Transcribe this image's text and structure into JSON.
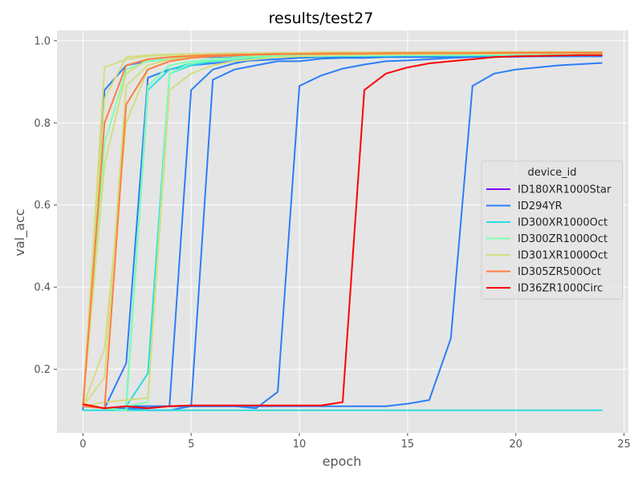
{
  "chart_data": {
    "type": "line",
    "title": "results/test27",
    "xlabel": "epoch",
    "ylabel": "val_acc",
    "xlim": [
      -1.2,
      25.2
    ],
    "ylim": [
      0.045,
      1.025
    ],
    "xticks": [
      0,
      5,
      10,
      15,
      20,
      25
    ],
    "yticks": [
      0.2,
      0.4,
      0.6,
      0.8,
      1.0
    ],
    "xtick_labels": [
      "0",
      "5",
      "10",
      "15",
      "20",
      "25"
    ],
    "ytick_labels": [
      "0.2",
      "0.4",
      "0.6",
      "0.8",
      "1.0"
    ],
    "grid": true,
    "legend": {
      "title": "device_id",
      "placement": "center-right",
      "entries": [
        {
          "label": "ID180XR1000Star",
          "color": "#8000ff"
        },
        {
          "label": "ID294YR",
          "color": "#2c7ef7"
        },
        {
          "label": "ID300XR1000Oct",
          "color": "#2adddd"
        },
        {
          "label": "ID300ZR1000Oct",
          "color": "#80ffb4"
        },
        {
          "label": "ID301XR1000Oct",
          "color": "#d4dd80"
        },
        {
          "label": "ID305ZR500Oct",
          "color": "#ff7e41"
        },
        {
          "label": "ID36ZR1000Circ",
          "color": "#ff0000"
        }
      ]
    },
    "series": [
      {
        "color": "#2c7ef7",
        "x": [
          0,
          1,
          2,
          3,
          4,
          5,
          6,
          7,
          8,
          9,
          10,
          11,
          12,
          13,
          14,
          15,
          16,
          17,
          18,
          19,
          20,
          21,
          22,
          23,
          24
        ],
        "y": [
          0.1,
          0.88,
          0.94,
          0.95,
          0.955,
          0.96,
          0.96,
          0.962,
          0.962,
          0.963,
          0.963,
          0.963,
          0.964,
          0.964,
          0.964,
          0.964,
          0.964,
          0.964,
          0.964,
          0.964,
          0.964,
          0.965,
          0.965,
          0.965,
          0.965
        ]
      },
      {
        "color": "#2c7ef7",
        "x": [
          0,
          1,
          2,
          3,
          4,
          5,
          6,
          7,
          8,
          9,
          10,
          11,
          12,
          13,
          14,
          15,
          16,
          17,
          18,
          19,
          20,
          21,
          22,
          23,
          24
        ],
        "y": [
          0.11,
          0.105,
          0.215,
          0.91,
          0.93,
          0.94,
          0.945,
          0.95,
          0.952,
          0.955,
          0.958,
          0.96,
          0.96,
          0.962,
          0.962,
          0.962,
          0.963,
          0.963,
          0.963,
          0.963,
          0.964,
          0.964,
          0.964,
          0.964,
          0.964
        ]
      },
      {
        "color": "#2c7ef7",
        "x": [
          0,
          1,
          2,
          3,
          4,
          5,
          6,
          7,
          8,
          9,
          10,
          11,
          12,
          13,
          14,
          15,
          16,
          17,
          18,
          19,
          20,
          21,
          22,
          23,
          24
        ],
        "y": [
          0.11,
          0.105,
          0.105,
          0.1,
          0.1,
          0.11,
          0.905,
          0.93,
          0.94,
          0.95,
          0.95,
          0.956,
          0.958,
          0.958,
          0.96,
          0.96,
          0.96,
          0.961,
          0.961,
          0.961,
          0.961,
          0.962,
          0.962,
          0.962,
          0.962
        ]
      },
      {
        "color": "#2c7ef7",
        "x": [
          0,
          1,
          2,
          3,
          4,
          5,
          6,
          7,
          8,
          9,
          10,
          11,
          12,
          13,
          14,
          15,
          16,
          17,
          18,
          19,
          20,
          21,
          22,
          23,
          24
        ],
        "y": [
          0.11,
          0.105,
          0.11,
          0.11,
          0.11,
          0.11,
          0.11,
          0.11,
          0.105,
          0.145,
          0.89,
          0.915,
          0.932,
          0.942,
          0.95,
          0.952,
          0.955,
          0.958,
          0.96,
          0.961,
          0.961,
          0.962,
          0.962,
          0.962,
          0.962
        ]
      },
      {
        "color": "#2c7ef7",
        "x": [
          0,
          1,
          2,
          3,
          4,
          5,
          6,
          7,
          8,
          9,
          10,
          11,
          12,
          13,
          14,
          15,
          16,
          17,
          18,
          19,
          20,
          21,
          22,
          23,
          24
        ],
        "y": [
          0.11,
          0.105,
          0.11,
          0.11,
          0.11,
          0.11,
          0.11,
          0.11,
          0.11,
          0.11,
          0.11,
          0.11,
          0.11,
          0.11,
          0.11,
          0.116,
          0.125,
          0.275,
          0.89,
          0.92,
          0.93,
          0.935,
          0.94,
          0.943,
          0.946
        ]
      },
      {
        "color": "#2c7ef7",
        "x": [
          0,
          1,
          2,
          3,
          4,
          5,
          6,
          7,
          8,
          9,
          10,
          11,
          12,
          13,
          14,
          15,
          16,
          17,
          18,
          19,
          20,
          21,
          22,
          23,
          24
        ],
        "y": [
          0.11,
          0.105,
          0.105,
          0.105,
          0.11,
          0.88,
          0.93,
          0.945,
          0.955,
          0.96,
          0.962,
          0.962,
          0.962,
          0.962,
          0.963,
          0.963,
          0.963,
          0.963,
          0.963,
          0.964,
          0.964,
          0.964,
          0.964,
          0.964,
          0.964
        ]
      },
      {
        "color": "#2adddd",
        "x": [
          0,
          1,
          2,
          3,
          4,
          5,
          6,
          7,
          8,
          9,
          10,
          11,
          12,
          13,
          14,
          15,
          16,
          17,
          18,
          19,
          20,
          21,
          22,
          23,
          24
        ],
        "y": [
          0.1,
          0.1,
          0.1,
          0.1,
          0.1,
          0.1,
          0.1,
          0.1,
          0.1,
          0.1,
          0.1,
          0.1,
          0.1,
          0.1,
          0.1,
          0.1,
          0.1,
          0.1,
          0.1,
          0.1,
          0.1,
          0.1,
          0.1,
          0.1,
          0.1
        ]
      },
      {
        "color": "#2adddd",
        "x": [
          0,
          1,
          2,
          3,
          4,
          5,
          6,
          7,
          8,
          9,
          10,
          11,
          12,
          13,
          14,
          15,
          16,
          17,
          18,
          19,
          20,
          21,
          22,
          23,
          24
        ],
        "y": [
          0.11,
          0.105,
          0.11,
          0.19,
          0.92,
          0.94,
          0.95,
          0.955,
          0.958,
          0.96,
          0.962,
          0.962,
          0.963,
          0.963,
          0.963,
          0.964,
          0.964,
          0.964,
          0.964,
          0.964,
          0.965,
          0.965,
          0.965,
          0.965,
          0.965
        ]
      },
      {
        "color": "#2adddd",
        "x": [
          0,
          1,
          2,
          3,
          4,
          5,
          6,
          7,
          8,
          9,
          10,
          11,
          12,
          13,
          14,
          15,
          16,
          17,
          18,
          19,
          20,
          21,
          22,
          23,
          24
        ],
        "y": [
          0.11,
          0.105,
          0.11,
          0.88,
          0.93,
          0.945,
          0.952,
          0.956,
          0.958,
          0.96,
          0.962,
          0.962,
          0.963,
          0.963,
          0.963,
          0.964,
          0.964,
          0.964,
          0.964,
          0.964,
          0.964,
          0.965,
          0.965,
          0.965,
          0.965
        ]
      },
      {
        "color": "#80ffb4",
        "x": [
          0,
          1,
          2,
          3,
          4,
          5,
          6,
          7,
          8,
          9,
          10,
          11,
          12,
          13,
          14,
          15,
          16,
          17,
          18,
          19,
          20,
          21,
          22,
          23,
          24
        ],
        "y": [
          0.11,
          0.75,
          0.93,
          0.95,
          0.955,
          0.96,
          0.962,
          0.963,
          0.963,
          0.964,
          0.965,
          0.965,
          0.966,
          0.966,
          0.966,
          0.966,
          0.967,
          0.967,
          0.967,
          0.967,
          0.967,
          0.967,
          0.967,
          0.967,
          0.967
        ]
      },
      {
        "color": "#80ffb4",
        "x": [
          0,
          1,
          2,
          3,
          4,
          5,
          6,
          7,
          8,
          9,
          10,
          11,
          12,
          13,
          14,
          15,
          16,
          17,
          18,
          19,
          20,
          21,
          22,
          23,
          24
        ],
        "y": [
          0.11,
          0.105,
          0.1,
          0.89,
          0.94,
          0.95,
          0.955,
          0.958,
          0.96,
          0.962,
          0.963,
          0.963,
          0.964,
          0.964,
          0.965,
          0.965,
          0.965,
          0.965,
          0.965,
          0.966,
          0.966,
          0.966,
          0.966,
          0.966,
          0.966
        ]
      },
      {
        "color": "#80ffb4",
        "x": [
          0,
          1,
          2,
          3,
          4,
          5,
          6,
          7,
          8,
          9,
          10,
          11,
          12,
          13,
          14,
          15,
          16,
          17,
          18,
          19,
          20,
          21,
          22,
          23,
          24
        ],
        "y": [
          0.11,
          0.105,
          0.11,
          0.12,
          0.92,
          0.945,
          0.952,
          0.956,
          0.96,
          0.962,
          0.963,
          0.963,
          0.964,
          0.964,
          0.965,
          0.965,
          0.965,
          0.965,
          0.965,
          0.966,
          0.966,
          0.966,
          0.966,
          0.966,
          0.966
        ]
      },
      {
        "color": "#d4dd80",
        "x": [
          0,
          1,
          2,
          3,
          4,
          5,
          6,
          7,
          8,
          9,
          10,
          11,
          12,
          13,
          14,
          15,
          16,
          17,
          18,
          19,
          20,
          21,
          22,
          23,
          24
        ],
        "y": [
          0.11,
          0.935,
          0.955,
          0.962,
          0.965,
          0.967,
          0.968,
          0.968,
          0.969,
          0.97,
          0.97,
          0.97,
          0.971,
          0.971,
          0.971,
          0.971,
          0.972,
          0.972,
          0.972,
          0.972,
          0.972,
          0.972,
          0.972,
          0.972,
          0.972
        ]
      },
      {
        "color": "#d4dd80",
        "x": [
          0,
          1,
          2,
          3,
          4,
          5,
          6,
          7,
          8,
          9,
          10,
          11,
          12,
          13,
          14,
          15,
          16,
          17,
          18,
          19,
          20,
          21,
          22,
          23,
          24
        ],
        "y": [
          0.11,
          0.86,
          0.96,
          0.965,
          0.967,
          0.968,
          0.969,
          0.97,
          0.97,
          0.971,
          0.971,
          0.972,
          0.972,
          0.972,
          0.972,
          0.972,
          0.973,
          0.973,
          0.973,
          0.973,
          0.973,
          0.973,
          0.973,
          0.973,
          0.973
        ]
      },
      {
        "color": "#d4dd80",
        "x": [
          0,
          1,
          2,
          3,
          4,
          5,
          6,
          7,
          8,
          9,
          10,
          11,
          12,
          13,
          14,
          15,
          16,
          17,
          18,
          19,
          20,
          21,
          22,
          23,
          24
        ],
        "y": [
          0.11,
          0.7,
          0.92,
          0.955,
          0.96,
          0.963,
          0.965,
          0.966,
          0.967,
          0.968,
          0.968,
          0.969,
          0.969,
          0.97,
          0.97,
          0.97,
          0.97,
          0.971,
          0.971,
          0.971,
          0.971,
          0.971,
          0.971,
          0.971,
          0.971
        ]
      },
      {
        "color": "#d4dd80",
        "x": [
          0,
          1,
          2,
          3,
          4,
          5,
          6,
          7,
          8,
          9,
          10,
          11,
          12,
          13,
          14,
          15,
          16,
          17,
          18,
          19,
          20,
          21,
          22,
          23,
          24
        ],
        "y": [
          0.11,
          0.25,
          0.8,
          0.93,
          0.95,
          0.958,
          0.962,
          0.964,
          0.966,
          0.967,
          0.968,
          0.968,
          0.969,
          0.969,
          0.97,
          0.97,
          0.97,
          0.97,
          0.971,
          0.971,
          0.971,
          0.971,
          0.971,
          0.971,
          0.971
        ]
      },
      {
        "color": "#d4dd80",
        "x": [
          0,
          1,
          2,
          3,
          4,
          5,
          6,
          7,
          8,
          9,
          10,
          11,
          12,
          13,
          14,
          15,
          16,
          17,
          18,
          19,
          20,
          21,
          22,
          23,
          24
        ],
        "y": [
          0.11,
          0.18,
          0.89,
          0.94,
          0.955,
          0.96,
          0.963,
          0.965,
          0.966,
          0.967,
          0.968,
          0.968,
          0.969,
          0.969,
          0.969,
          0.97,
          0.97,
          0.97,
          0.97,
          0.97,
          0.971,
          0.971,
          0.971,
          0.971,
          0.971
        ]
      },
      {
        "color": "#d4dd80",
        "x": [
          0,
          1,
          2,
          3,
          4,
          5,
          6,
          7,
          8,
          9,
          10,
          11,
          12,
          13,
          14,
          15,
          16,
          17,
          18,
          19,
          20,
          21,
          22,
          23,
          24
        ],
        "y": [
          0.11,
          0.12,
          0.125,
          0.13,
          0.88,
          0.92,
          0.94,
          0.95,
          0.955,
          0.96,
          0.962,
          0.964,
          0.965,
          0.966,
          0.966,
          0.967,
          0.967,
          0.968,
          0.968,
          0.968,
          0.969,
          0.969,
          0.969,
          0.969,
          0.969
        ]
      },
      {
        "color": "#ff7e41",
        "x": [
          0,
          1,
          2,
          3,
          4,
          5,
          6,
          7,
          8,
          9,
          10,
          11,
          12,
          13,
          14,
          15,
          16,
          17,
          18,
          19,
          20,
          21,
          22,
          23,
          24
        ],
        "y": [
          0.11,
          0.105,
          0.845,
          0.93,
          0.95,
          0.958,
          0.962,
          0.964,
          0.966,
          0.967,
          0.968,
          0.968,
          0.969,
          0.969,
          0.969,
          0.97,
          0.97,
          0.97,
          0.97,
          0.97,
          0.971,
          0.971,
          0.971,
          0.971,
          0.971
        ]
      },
      {
        "color": "#ff7e41",
        "x": [
          0,
          1,
          2,
          3,
          4,
          5,
          6,
          7,
          8,
          9,
          10,
          11,
          12,
          13,
          14,
          15,
          16,
          17,
          18,
          19,
          20,
          21,
          22,
          23,
          24
        ],
        "y": [
          0.11,
          0.8,
          0.94,
          0.955,
          0.96,
          0.963,
          0.965,
          0.966,
          0.967,
          0.968,
          0.968,
          0.969,
          0.969,
          0.969,
          0.97,
          0.97,
          0.97,
          0.97,
          0.97,
          0.971,
          0.971,
          0.971,
          0.971,
          0.971,
          0.971
        ]
      },
      {
        "color": "#ff0000",
        "x": [
          0,
          1,
          2,
          3,
          4,
          5,
          6,
          7,
          8,
          9,
          10,
          11,
          12,
          13,
          14,
          15,
          16,
          17,
          18,
          19,
          20,
          21,
          22,
          23,
          24
        ],
        "y": [
          0.115,
          0.105,
          0.11,
          0.105,
          0.11,
          0.112,
          0.112,
          0.112,
          0.112,
          0.112,
          0.112,
          0.112,
          0.12,
          0.88,
          0.92,
          0.935,
          0.945,
          0.95,
          0.955,
          0.96,
          0.962,
          0.963,
          0.964,
          0.965,
          0.965
        ]
      }
    ]
  }
}
